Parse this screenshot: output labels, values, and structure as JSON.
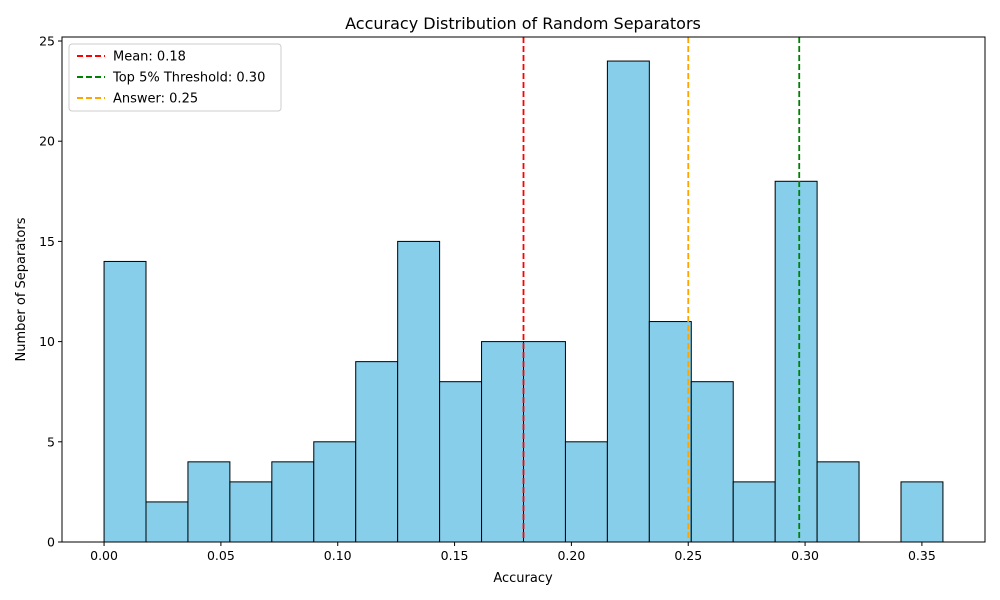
{
  "chart_data": {
    "type": "bar",
    "title": "Accuracy Distribution of Random Separators",
    "xlabel": "Accuracy",
    "ylabel": "Number of Separators",
    "xlim": [
      -0.018,
      0.377
    ],
    "ylim": [
      0,
      25.2
    ],
    "xticks": [
      0.0,
      0.05,
      0.1,
      0.15,
      0.2,
      0.25,
      0.3,
      0.35
    ],
    "xtick_labels": [
      "0.00",
      "0.05",
      "0.10",
      "0.15",
      "0.20",
      "0.25",
      "0.30",
      "0.35"
    ],
    "yticks": [
      0,
      5,
      10,
      15,
      20,
      25
    ],
    "ytick_labels": [
      "0",
      "5",
      "10",
      "15",
      "20",
      "25"
    ],
    "bin_start": 0.0,
    "bin_width": 0.01795,
    "values": [
      14,
      2,
      4,
      3,
      4,
      5,
      9,
      15,
      8,
      10,
      10,
      5,
      24,
      11,
      8,
      3,
      18,
      4,
      0,
      3
    ],
    "bar_color": "#87ceeb",
    "bar_edge_color": "#000000",
    "grid": false,
    "legend_position": "top-left",
    "reference_lines": [
      {
        "label": "Mean: 0.18",
        "x": 0.1795,
        "color": "#ff0000",
        "style": "dashed"
      },
      {
        "label": "Top 5% Threshold: 0.30",
        "x": 0.2975,
        "color": "#008000",
        "style": "dashed"
      },
      {
        "label": "Answer: 0.25",
        "x": 0.25,
        "color": "#ffa500",
        "style": "dashed"
      }
    ]
  }
}
